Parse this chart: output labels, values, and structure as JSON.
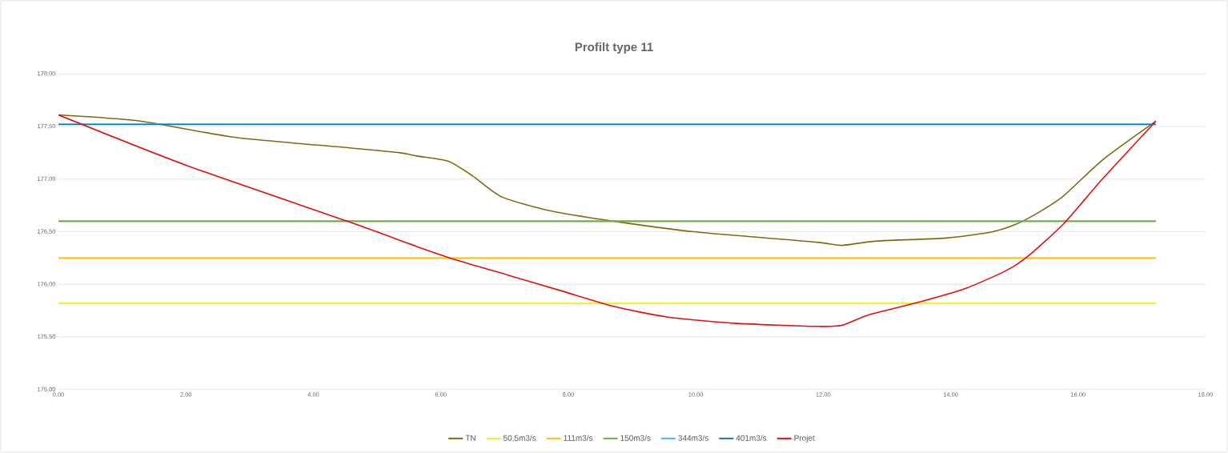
{
  "chart_data": {
    "type": "line",
    "title": "Profilt type 11",
    "xlim": [
      0,
      18
    ],
    "ylim": [
      175,
      178
    ],
    "xticks": [
      {
        "value": 0,
        "label": "0,00"
      },
      {
        "value": 2,
        "label": "2,00"
      },
      {
        "value": 4,
        "label": "4,00"
      },
      {
        "value": 6,
        "label": "6,00"
      },
      {
        "value": 8,
        "label": "8,00"
      },
      {
        "value": 10,
        "label": "10,00"
      },
      {
        "value": 12,
        "label": "12,00"
      },
      {
        "value": 14,
        "label": "14,00"
      },
      {
        "value": 16,
        "label": "16,00"
      },
      {
        "value": 18,
        "label": "18,00"
      }
    ],
    "yticks": [
      {
        "value": 175,
        "label": "175,00"
      },
      {
        "value": 175.5,
        "label": "175,50"
      },
      {
        "value": 176,
        "label": "176,00"
      },
      {
        "value": 176.5,
        "label": "176,50"
      },
      {
        "value": 177,
        "label": "177,00"
      },
      {
        "value": 177.5,
        "label": "177,50"
      },
      {
        "value": 178,
        "label": "178,00"
      }
    ],
    "grid": "y",
    "legend": "bottom",
    "series": [
      {
        "name": "TN",
        "color": "#7f6a10",
        "x": [
          0,
          1.3,
          2.73,
          4.5,
          5.36,
          5.62,
          6.12,
          6.5,
          6.96,
          7.71,
          8.71,
          9.97,
          11.9,
          12.29,
          12.81,
          13.93,
          14.66,
          15.13,
          15.73,
          16.38,
          17.22
        ],
        "values": [
          177.61,
          177.55,
          177.4,
          177.3,
          177.25,
          177.22,
          177.17,
          177.03,
          176.83,
          176.7,
          176.6,
          176.5,
          176.4,
          176.37,
          176.41,
          176.44,
          176.5,
          176.6,
          176.82,
          177.18,
          177.55
        ]
      },
      {
        "name": "50,5m3/s",
        "color": "#f5ef2a",
        "x": [
          0,
          17.22
        ],
        "values": [
          175.82,
          175.82
        ]
      },
      {
        "name": "111m3/s",
        "color": "#ffc000",
        "x": [
          0,
          17.22
        ],
        "values": [
          176.25,
          176.25
        ]
      },
      {
        "name": "150m3/s",
        "color": "#70ad47",
        "x": [
          0,
          17.22
        ],
        "values": [
          176.6,
          176.6
        ]
      },
      {
        "name": "344m3/s",
        "color": "#3cbde8",
        "x": [
          0,
          17.22
        ],
        "values": [
          177.52,
          177.52
        ]
      },
      {
        "name": "401m3/s",
        "color": "#1f6fb4",
        "x": [
          0,
          17.22
        ],
        "values": [
          177.52,
          177.52
        ]
      },
      {
        "name": "Projet",
        "color": "#e01010",
        "x": [
          0,
          2.01,
          4.53,
          5.62,
          6.2,
          7.04,
          7.88,
          8.71,
          9.55,
          10.6,
          11.9,
          12.29,
          12.72,
          13.5,
          14.23,
          14.87,
          15.22,
          15.78,
          16.38,
          17.22
        ],
        "values": [
          177.61,
          177.13,
          176.6,
          176.36,
          176.24,
          176.09,
          175.94,
          175.79,
          175.69,
          175.63,
          175.6,
          175.61,
          175.71,
          175.83,
          175.96,
          176.13,
          176.27,
          176.58,
          177.0,
          177.55
        ]
      }
    ]
  }
}
